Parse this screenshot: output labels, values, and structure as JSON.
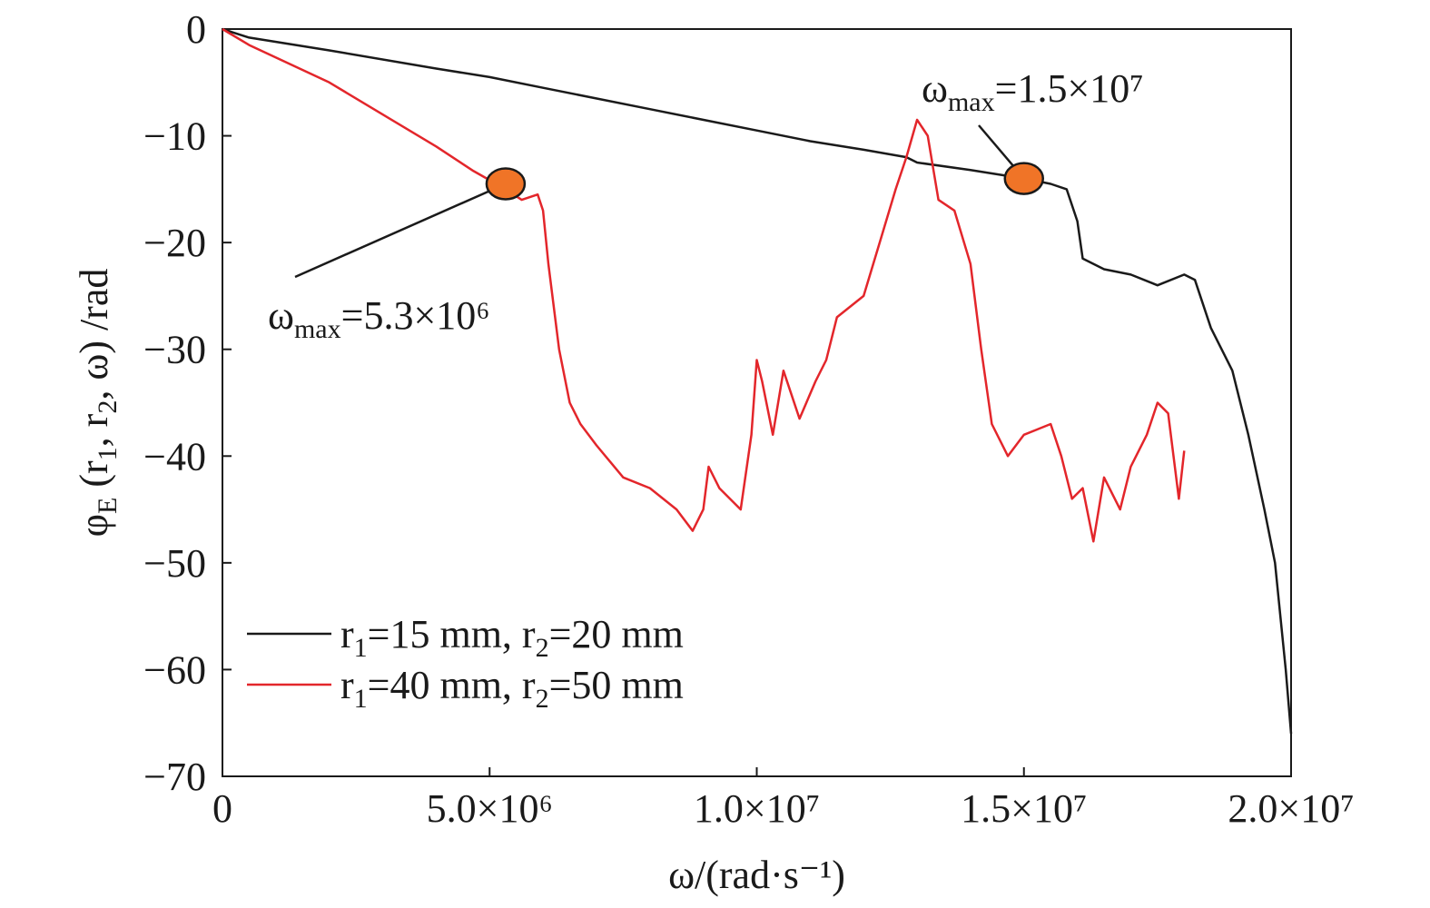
{
  "chart_data": {
    "type": "line",
    "xlabel": "ω/(rad·s⁻¹)",
    "ylabel": "φE (r1, r2, ω) /rad",
    "xlim": [
      0,
      20000000
    ],
    "ylim": [
      -70,
      0
    ],
    "xticks": [
      0,
      {
        "value": 5000000,
        "label": "5.0×10⁶"
      },
      {
        "value": 10000000,
        "label": "1.0×10⁷"
      },
      {
        "value": 15000000,
        "label": "1.5×10⁷"
      },
      {
        "value": 20000000,
        "label": "2.0×10⁷"
      }
    ],
    "yticks": [
      0,
      {
        "value": -10,
        "label": "−10"
      },
      {
        "value": -20,
        "label": "−20"
      },
      {
        "value": -30,
        "label": "−30"
      },
      {
        "value": -40,
        "label": "−40"
      },
      {
        "value": -50,
        "label": "−50"
      },
      {
        "value": -60,
        "label": "−60"
      },
      {
        "value": -70,
        "label": "−70"
      }
    ],
    "legend": "lower left",
    "series": [
      {
        "name": "r1=15 mm, r2=20 mm",
        "color": "#1a1a1a",
        "x": [
          0,
          500000,
          2000000,
          4000000,
          5000000,
          6000000,
          8000000,
          10000000,
          11000000,
          12000000,
          12800000,
          13000000,
          14000000,
          15000000,
          15500000,
          15800000,
          16000000,
          16100000,
          16500000,
          17000000,
          17500000,
          18000000,
          18200000,
          18500000,
          18700000,
          18900000,
          19200000,
          19500000,
          19700000,
          19900000,
          20000000
        ],
        "values": [
          0,
          -0.8,
          -2,
          -3.7,
          -4.5,
          -5.5,
          -7.5,
          -9.5,
          -10.5,
          -11.3,
          -12,
          -12.5,
          -13.2,
          -14,
          -14.5,
          -15,
          -18,
          -21.5,
          -22.5,
          -23,
          -24,
          -23,
          -23.5,
          -28,
          -30,
          -32,
          -38,
          -45,
          -50,
          -60,
          -66
        ]
      },
      {
        "name": "r1=40 mm, r2=50 mm",
        "color": "#e3262b",
        "x": [
          0,
          500000,
          2000000,
          3000000,
          4000000,
          4700000,
          5300000,
          5600000,
          5900000,
          6000000,
          6100000,
          6300000,
          6500000,
          6700000,
          7000000,
          7500000,
          8000000,
          8500000,
          8800000,
          9000000,
          9100000,
          9300000,
          9700000,
          9900000,
          10000000,
          10100000,
          10300000,
          10500000,
          10800000,
          11100000,
          11300000,
          11500000,
          12000000,
          12300000,
          12600000,
          12800000,
          13000000,
          13200000,
          13400000,
          13700000,
          14000000,
          14200000,
          14400000,
          14700000,
          15000000,
          15500000,
          15700000,
          15900000,
          16100000,
          16300000,
          16500000,
          16800000,
          17000000,
          17300000,
          17500000,
          17700000,
          17900000,
          18000000
        ],
        "values": [
          0,
          -1.5,
          -5,
          -8,
          -11,
          -13.3,
          -15,
          -16,
          -15.5,
          -17,
          -22,
          -30,
          -35,
          -37,
          -39,
          -42,
          -43,
          -45,
          -47,
          -45,
          -41,
          -43,
          -45,
          -38,
          -31,
          -33,
          -38,
          -32,
          -36.5,
          -33,
          -31,
          -27,
          -25,
          -20,
          -15,
          -12,
          -8.5,
          -10,
          -16,
          -17,
          -22,
          -30,
          -37,
          -40,
          -38,
          -37,
          -40,
          -44,
          -43,
          -48,
          -42,
          -45,
          -41,
          -38,
          -35,
          -36,
          -44,
          -39.5
        ]
      }
    ],
    "annotations": [
      {
        "text": "ωmax=5.3×10⁶",
        "x": 5300000,
        "y": -14.5
      },
      {
        "text": "ωmax=1.5×10⁷",
        "x": 15000000,
        "y": -14
      }
    ]
  }
}
